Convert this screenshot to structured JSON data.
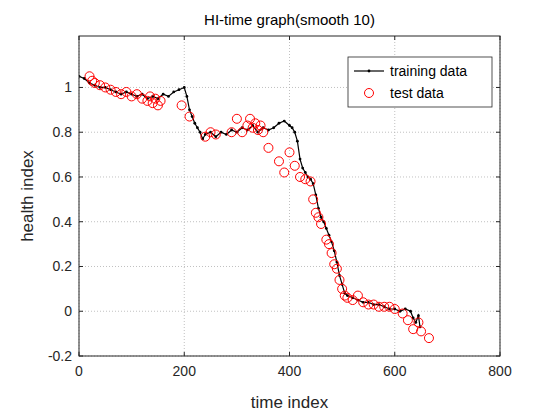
{
  "chart_data": {
    "type": "line",
    "title": "HI-time graph(smooth 10)",
    "x_label": "time index",
    "y_label": "health index",
    "xlim": [
      0,
      800
    ],
    "xticks": [
      0,
      200,
      400,
      600,
      800
    ],
    "ylim": [
      -0.2,
      1.23
    ],
    "yticks": [
      -0.2,
      0,
      0.2,
      0.4,
      0.6,
      0.8,
      1
    ],
    "grid": true,
    "legend": "top-right",
    "series": [
      {
        "name": "training data",
        "type": "line",
        "color": "#000000",
        "marker": "dot",
        "line_style": "solid",
        "x": [
          0,
          10,
          20,
          30,
          40,
          50,
          60,
          70,
          80,
          90,
          100,
          110,
          120,
          130,
          140,
          150,
          160,
          170,
          180,
          190,
          200,
          205,
          210,
          215,
          220,
          225,
          230,
          235,
          240,
          250,
          260,
          270,
          280,
          290,
          300,
          310,
          320,
          330,
          340,
          350,
          360,
          370,
          380,
          390,
          400,
          405,
          410,
          415,
          420,
          425,
          430,
          435,
          440,
          445,
          450,
          455,
          460,
          465,
          470,
          475,
          480,
          485,
          490,
          495,
          500,
          505,
          510,
          520,
          530,
          540,
          550,
          560,
          570,
          580,
          590,
          600,
          610,
          620,
          630,
          635,
          640,
          645,
          648
        ],
        "values": [
          1.05,
          1.04,
          1.02,
          1.01,
          1.0,
          1.0,
          0.99,
          0.98,
          0.97,
          0.98,
          0.97,
          0.96,
          0.97,
          0.95,
          0.96,
          0.95,
          0.97,
          0.96,
          0.98,
          0.99,
          1.0,
          0.96,
          0.9,
          0.87,
          0.84,
          0.82,
          0.8,
          0.77,
          0.79,
          0.8,
          0.78,
          0.8,
          0.79,
          0.81,
          0.8,
          0.82,
          0.81,
          0.83,
          0.8,
          0.82,
          0.81,
          0.82,
          0.84,
          0.85,
          0.83,
          0.82,
          0.8,
          0.76,
          0.68,
          0.64,
          0.62,
          0.6,
          0.59,
          0.57,
          0.52,
          0.46,
          0.42,
          0.4,
          0.37,
          0.34,
          0.31,
          0.27,
          0.22,
          0.16,
          0.12,
          0.08,
          0.07,
          0.06,
          0.05,
          0.04,
          0.04,
          0.03,
          0.03,
          0.02,
          0.01,
          0.01,
          0.0,
          0.01,
          0.0,
          -0.03,
          -0.05,
          -0.02,
          -0.07
        ]
      },
      {
        "name": "test data",
        "type": "scatter",
        "color": "#ff0000",
        "marker": "circle",
        "line_style": "none",
        "x": [
          20,
          25,
          30,
          40,
          50,
          60,
          70,
          80,
          90,
          100,
          110,
          120,
          130,
          135,
          140,
          145,
          150,
          155,
          195,
          210,
          240,
          250,
          260,
          290,
          300,
          310,
          320,
          325,
          330,
          335,
          340,
          345,
          350,
          360,
          380,
          390,
          400,
          410,
          420,
          430,
          440,
          445,
          450,
          455,
          460,
          470,
          475,
          480,
          485,
          490,
          495,
          500,
          505,
          510,
          520,
          530,
          540,
          550,
          560,
          570,
          580,
          590,
          600,
          615,
          625,
          635,
          645,
          650,
          665
        ],
        "values": [
          1.05,
          1.03,
          1.02,
          1.01,
          1.0,
          0.99,
          0.98,
          0.97,
          0.98,
          0.96,
          0.97,
          0.95,
          0.94,
          0.96,
          0.93,
          0.95,
          0.92,
          0.94,
          0.92,
          0.87,
          0.78,
          0.8,
          0.79,
          0.8,
          0.86,
          0.8,
          0.83,
          0.86,
          0.82,
          0.84,
          0.81,
          0.83,
          0.8,
          0.73,
          0.67,
          0.62,
          0.71,
          0.65,
          0.6,
          0.59,
          0.58,
          0.5,
          0.44,
          0.42,
          0.39,
          0.32,
          0.3,
          0.26,
          0.21,
          0.19,
          0.14,
          0.1,
          0.07,
          0.06,
          0.05,
          0.07,
          0.04,
          0.03,
          0.03,
          0.02,
          0.02,
          0.02,
          0.01,
          -0.01,
          -0.04,
          -0.08,
          -0.05,
          -0.09,
          -0.12
        ]
      }
    ]
  }
}
